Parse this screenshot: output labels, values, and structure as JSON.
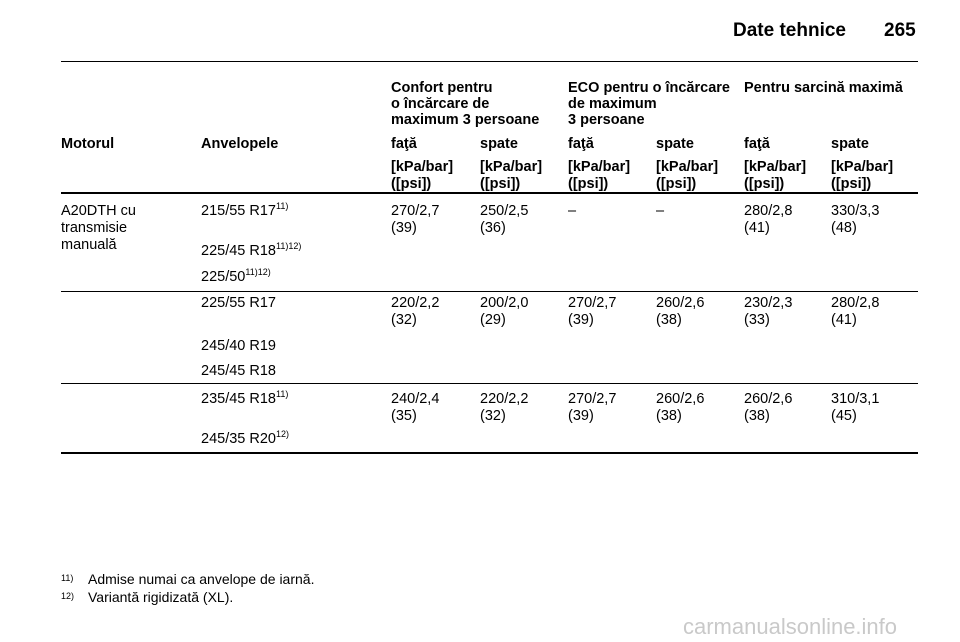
{
  "header": {
    "section": "Date tehnice",
    "page": "265"
  },
  "table": {
    "groups": [
      {
        "lines": [
          "Confort pentru",
          "o încărcare de",
          "maximum 3 persoane"
        ]
      },
      {
        "lines": [
          "ECO pentru o încărcare",
          "de maximum",
          "3 persoane"
        ]
      },
      {
        "lines": [
          "Pentru sarcină maximă"
        ]
      }
    ],
    "columns": [
      "Motorul",
      "Anvelopele",
      "faţă",
      "spate",
      "faţă",
      "spate",
      "faţă",
      "spate"
    ],
    "units": [
      [
        "[kPa/bar]",
        "([psi])"
      ],
      [
        "[kPa/bar]",
        "([psi])"
      ],
      [
        "[kPa/bar]",
        "([psi])"
      ],
      [
        "[kPa/bar]",
        "([psi])"
      ],
      [
        "[kPa/bar]",
        "([psi])"
      ],
      [
        "[kPa/bar]",
        "([psi])"
      ]
    ],
    "rows": [
      {
        "engine": [
          "A20DTH cu",
          "transmisie",
          "manuală"
        ],
        "tires": [
          {
            "text": "215/55 R17",
            "sup": "11)"
          },
          {
            "text": "225/45 R18",
            "sup": "11)12)"
          },
          {
            "text": "225/50",
            "sup": "11)12)"
          }
        ],
        "values": [
          [
            "270/2,7",
            "(39)"
          ],
          [
            "250/2,5",
            "(36)"
          ],
          [
            "–"
          ],
          [
            "–"
          ],
          [
            "280/2,8",
            "(41)"
          ],
          [
            "330/3,3",
            "(48)"
          ]
        ]
      },
      {
        "tires": [
          {
            "text": "225/55 R17"
          },
          {
            "text": "245/40 R19"
          },
          {
            "text": "245/45 R18"
          }
        ],
        "values": [
          [
            "220/2,2",
            "(32)"
          ],
          [
            "200/2,0",
            "(29)"
          ],
          [
            "270/2,7",
            "(39)"
          ],
          [
            "260/2,6",
            "(38)"
          ],
          [
            "230/2,3",
            "(33)"
          ],
          [
            "280/2,8",
            "(41)"
          ]
        ]
      },
      {
        "tires": [
          {
            "text": "235/45 R18",
            "sup": "11)"
          },
          {
            "text": "245/35 R20",
            "sup": "12)"
          }
        ],
        "values": [
          [
            "240/2,4",
            "(35)"
          ],
          [
            "220/2,2",
            "(32)"
          ],
          [
            "270/2,7",
            "(39)"
          ],
          [
            "260/2,6",
            "(38)"
          ],
          [
            "260/2,6",
            "(38)"
          ],
          [
            "310/3,1",
            "(45)"
          ]
        ]
      }
    ]
  },
  "footnotes": [
    {
      "mark": "11)",
      "text": "Admise numai ca anvelope de iarnă."
    },
    {
      "mark": "12)",
      "text": "Variantă rigidizată (XL)."
    }
  ],
  "watermark": "carmanualsonline.info"
}
